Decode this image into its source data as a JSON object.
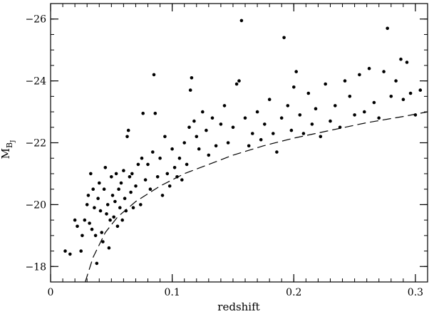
{
  "chart_data": {
    "type": "scatter",
    "title": "",
    "xlabel": "redshift",
    "ylabel": {
      "main": "M",
      "sub": "B",
      "subsub": "J"
    },
    "xlim": [
      0,
      0.31
    ],
    "ylim": [
      -17.5,
      -26.5
    ],
    "xticks": {
      "major": [
        0,
        0.1,
        0.2,
        0.3
      ],
      "labels": [
        "0",
        "0.1",
        "0.2",
        "0.3"
      ],
      "minor_step": 0.01
    },
    "yticks": {
      "major": [
        -18,
        -20,
        -22,
        -24,
        -26
      ],
      "labels": [
        "−18",
        "−20",
        "−22",
        "−24",
        "−26"
      ],
      "minor_step": 0.5
    },
    "grid": false,
    "legend": "none",
    "colors": {
      "points": "#000000",
      "curve": "#000000",
      "frame": "#000000"
    },
    "series": [
      {
        "kind": "points",
        "values": [
          [
            0.012,
            -18.5
          ],
          [
            0.016,
            -18.4
          ],
          [
            0.02,
            -19.5
          ],
          [
            0.022,
            -19.3
          ],
          [
            0.025,
            -18.5
          ],
          [
            0.026,
            -19.0
          ],
          [
            0.028,
            -19.5
          ],
          [
            0.03,
            -20.0
          ],
          [
            0.031,
            -20.3
          ],
          [
            0.032,
            -19.4
          ],
          [
            0.033,
            -21.0
          ],
          [
            0.034,
            -19.2
          ],
          [
            0.035,
            -20.5
          ],
          [
            0.036,
            -19.9
          ],
          [
            0.037,
            -19.0
          ],
          [
            0.038,
            -18.1
          ],
          [
            0.039,
            -20.2
          ],
          [
            0.04,
            -20.7
          ],
          [
            0.041,
            -19.8
          ],
          [
            0.042,
            -19.1
          ],
          [
            0.043,
            -18.8
          ],
          [
            0.044,
            -20.5
          ],
          [
            0.045,
            -21.2
          ],
          [
            0.046,
            -19.7
          ],
          [
            0.047,
            -20.0
          ],
          [
            0.048,
            -18.6
          ],
          [
            0.049,
            -19.5
          ],
          [
            0.05,
            -20.9
          ],
          [
            0.051,
            -20.3
          ],
          [
            0.052,
            -19.6
          ],
          [
            0.053,
            -20.1
          ],
          [
            0.054,
            -21.0
          ],
          [
            0.055,
            -19.3
          ],
          [
            0.056,
            -20.5
          ],
          [
            0.057,
            -19.9
          ],
          [
            0.058,
            -20.7
          ],
          [
            0.059,
            -19.5
          ],
          [
            0.06,
            -21.1
          ],
          [
            0.061,
            -20.2
          ],
          [
            0.062,
            -19.8
          ],
          [
            0.063,
            -22.2
          ],
          [
            0.064,
            -22.4
          ],
          [
            0.065,
            -20.9
          ],
          [
            0.066,
            -20.4
          ],
          [
            0.067,
            -21.0
          ],
          [
            0.068,
            -19.9
          ],
          [
            0.07,
            -20.6
          ],
          [
            0.072,
            -21.3
          ],
          [
            0.074,
            -20.0
          ],
          [
            0.075,
            -21.5
          ],
          [
            0.076,
            -22.95
          ],
          [
            0.078,
            -20.8
          ],
          [
            0.08,
            -21.3
          ],
          [
            0.082,
            -20.5
          ],
          [
            0.084,
            -21.7
          ],
          [
            0.085,
            -24.2
          ],
          [
            0.086,
            -22.95
          ],
          [
            0.088,
            -20.9
          ],
          [
            0.09,
            -21.5
          ],
          [
            0.092,
            -20.3
          ],
          [
            0.094,
            -22.2
          ],
          [
            0.096,
            -21.0
          ],
          [
            0.098,
            -20.6
          ],
          [
            0.1,
            -21.8
          ],
          [
            0.102,
            -21.2
          ],
          [
            0.104,
            -20.9
          ],
          [
            0.106,
            -21.5
          ],
          [
            0.108,
            -20.8
          ],
          [
            0.11,
            -22.0
          ],
          [
            0.112,
            -21.3
          ],
          [
            0.114,
            -22.5
          ],
          [
            0.115,
            -23.7
          ],
          [
            0.116,
            -24.1
          ],
          [
            0.118,
            -22.7
          ],
          [
            0.12,
            -22.2
          ],
          [
            0.122,
            -21.8
          ],
          [
            0.125,
            -23.0
          ],
          [
            0.128,
            -22.4
          ],
          [
            0.13,
            -21.6
          ],
          [
            0.133,
            -22.8
          ],
          [
            0.136,
            -21.9
          ],
          [
            0.14,
            -22.6
          ],
          [
            0.143,
            -23.2
          ],
          [
            0.146,
            -22.0
          ],
          [
            0.15,
            -22.5
          ],
          [
            0.153,
            -23.9
          ],
          [
            0.155,
            -24.0
          ],
          [
            0.157,
            -25.95
          ],
          [
            0.16,
            -22.8
          ],
          [
            0.163,
            -21.9
          ],
          [
            0.166,
            -22.3
          ],
          [
            0.17,
            -23.0
          ],
          [
            0.173,
            -22.1
          ],
          [
            0.176,
            -22.6
          ],
          [
            0.18,
            -23.4
          ],
          [
            0.183,
            -22.3
          ],
          [
            0.186,
            -21.7
          ],
          [
            0.19,
            -22.8
          ],
          [
            0.192,
            -25.4
          ],
          [
            0.195,
            -23.2
          ],
          [
            0.198,
            -22.4
          ],
          [
            0.2,
            -23.8
          ],
          [
            0.202,
            -24.3
          ],
          [
            0.205,
            -22.9
          ],
          [
            0.208,
            -22.3
          ],
          [
            0.212,
            -23.6
          ],
          [
            0.215,
            -22.6
          ],
          [
            0.218,
            -23.1
          ],
          [
            0.222,
            -22.2
          ],
          [
            0.226,
            -23.9
          ],
          [
            0.23,
            -22.7
          ],
          [
            0.234,
            -23.2
          ],
          [
            0.238,
            -22.5
          ],
          [
            0.242,
            -24.0
          ],
          [
            0.246,
            -23.5
          ],
          [
            0.25,
            -22.9
          ],
          [
            0.254,
            -24.2
          ],
          [
            0.258,
            -23.0
          ],
          [
            0.262,
            -24.4
          ],
          [
            0.266,
            -23.3
          ],
          [
            0.27,
            -22.8
          ],
          [
            0.274,
            -24.3
          ],
          [
            0.277,
            -25.7
          ],
          [
            0.28,
            -23.5
          ],
          [
            0.284,
            -24.0
          ],
          [
            0.288,
            -24.7
          ],
          [
            0.29,
            -23.4
          ],
          [
            0.293,
            -24.6
          ],
          [
            0.296,
            -23.6
          ],
          [
            0.3,
            -22.9
          ],
          [
            0.304,
            -23.7
          ]
        ]
      },
      {
        "kind": "curve",
        "style": "dashed",
        "values": [
          [
            0.0285,
            -17.5
          ],
          [
            0.035,
            -18.3
          ],
          [
            0.045,
            -19.1
          ],
          [
            0.055,
            -19.6
          ],
          [
            0.07,
            -20.1
          ],
          [
            0.09,
            -20.6
          ],
          [
            0.11,
            -21.0
          ],
          [
            0.13,
            -21.3
          ],
          [
            0.15,
            -21.6
          ],
          [
            0.175,
            -21.9
          ],
          [
            0.2,
            -22.15
          ],
          [
            0.23,
            -22.4
          ],
          [
            0.26,
            -22.65
          ],
          [
            0.29,
            -22.85
          ],
          [
            0.31,
            -23.0
          ]
        ]
      }
    ]
  }
}
